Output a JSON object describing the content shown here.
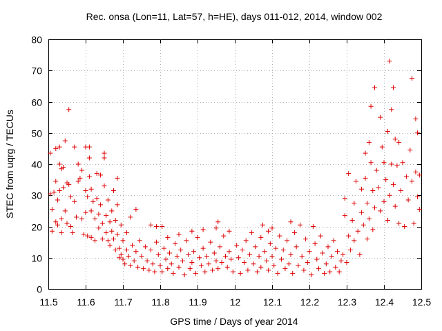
{
  "chart_data": {
    "type": "scatter",
    "title": "Rec. onsa (Lon=11, Lat=57, h=HE), days 011-012, 2014, window 002",
    "xlabel": "GPS time / Days of year 2014",
    "ylabel": "STEC from uqrg / TECUs",
    "xlim": [
      11.5,
      12.5
    ],
    "ylim": [
      0,
      80
    ],
    "xticks": [
      "11.5",
      "11.6",
      "11.7",
      "11.8",
      "11.9",
      "12",
      "12.1",
      "12.2",
      "12.3",
      "12.4",
      "12.5"
    ],
    "yticks": [
      "0",
      "10",
      "20",
      "30",
      "40",
      "50",
      "60",
      "70",
      "80"
    ],
    "grid": true,
    "marker": "+",
    "color": "#dd0000",
    "series": [
      {
        "name": "STEC",
        "points": [
          [
            11.505,
            43.5
          ],
          [
            11.505,
            30.5
          ],
          [
            11.51,
            25.5
          ],
          [
            11.51,
            18.5
          ],
          [
            11.515,
            31.0
          ],
          [
            11.52,
            45.0
          ],
          [
            11.52,
            34.5
          ],
          [
            11.52,
            21.5
          ],
          [
            11.525,
            28.5
          ],
          [
            11.525,
            20.5
          ],
          [
            11.53,
            45.5
          ],
          [
            11.53,
            40.0
          ],
          [
            11.53,
            31.5
          ],
          [
            11.535,
            38.5
          ],
          [
            11.535,
            22.5
          ],
          [
            11.535,
            18.0
          ],
          [
            11.54,
            39.0
          ],
          [
            11.54,
            32.5
          ],
          [
            11.545,
            47.5
          ],
          [
            11.545,
            25.0
          ],
          [
            11.55,
            34.0
          ],
          [
            11.55,
            21.0
          ],
          [
            11.555,
            57.5
          ],
          [
            11.555,
            33.5
          ],
          [
            11.56,
            29.5
          ],
          [
            11.56,
            20.0
          ],
          [
            11.565,
            18.0
          ],
          [
            11.57,
            45.5
          ],
          [
            11.57,
            28.0
          ],
          [
            11.575,
            23.0
          ],
          [
            11.58,
            40.0
          ],
          [
            11.58,
            34.5
          ],
          [
            11.585,
            35.5
          ],
          [
            11.59,
            38.0
          ],
          [
            11.59,
            22.5
          ],
          [
            11.595,
            17.5
          ],
          [
            11.6,
            45.5
          ],
          [
            11.6,
            31.5
          ],
          [
            11.6,
            24.5
          ],
          [
            11.605,
            29.5
          ],
          [
            11.605,
            17.0
          ],
          [
            11.61,
            45.5
          ],
          [
            11.61,
            42.0
          ],
          [
            11.61,
            36.0
          ],
          [
            11.615,
            32.0
          ],
          [
            11.615,
            25.0
          ],
          [
            11.615,
            16.5
          ],
          [
            11.62,
            28.0
          ],
          [
            11.625,
            22.5
          ],
          [
            11.625,
            15.5
          ],
          [
            11.63,
            37.0
          ],
          [
            11.63,
            29.0
          ],
          [
            11.635,
            24.0
          ],
          [
            11.635,
            19.5
          ],
          [
            11.64,
            36.5
          ],
          [
            11.64,
            27.0
          ],
          [
            11.645,
            21.0
          ],
          [
            11.645,
            16.0
          ],
          [
            11.65,
            43.5
          ],
          [
            11.65,
            42.0
          ],
          [
            11.65,
            33.0
          ],
          [
            11.655,
            23.5
          ],
          [
            11.655,
            18.0
          ],
          [
            11.66,
            28.5
          ],
          [
            11.66,
            15.5
          ],
          [
            11.665,
            21.5
          ],
          [
            11.665,
            14.0
          ],
          [
            11.67,
            25.0
          ],
          [
            11.67,
            18.5
          ],
          [
            11.675,
            31.5
          ],
          [
            11.675,
            16.0
          ],
          [
            11.68,
            22.0
          ],
          [
            11.68,
            12.5
          ],
          [
            11.685,
            35.5
          ],
          [
            11.685,
            27.0
          ],
          [
            11.685,
            17.5
          ],
          [
            11.69,
            13.0
          ],
          [
            11.69,
            10.0
          ],
          [
            11.695,
            20.5
          ],
          [
            11.695,
            11.0
          ],
          [
            11.7,
            15.5
          ],
          [
            11.7,
            9.5
          ],
          [
            11.705,
            8.0
          ],
          [
            11.71,
            18.0
          ],
          [
            11.71,
            12.5
          ],
          [
            11.715,
            10.5
          ],
          [
            11.72,
            23.0
          ],
          [
            11.72,
            7.5
          ],
          [
            11.725,
            14.0
          ],
          [
            11.73,
            9.0
          ],
          [
            11.735,
            25.5
          ],
          [
            11.735,
            12.0
          ],
          [
            11.74,
            7.0
          ],
          [
            11.745,
            15.5
          ],
          [
            11.75,
            10.5
          ],
          [
            11.755,
            6.5
          ],
          [
            11.76,
            13.5
          ],
          [
            11.765,
            9.0
          ],
          [
            11.77,
            6.0
          ],
          [
            11.775,
            20.5
          ],
          [
            11.775,
            12.5
          ],
          [
            11.78,
            8.0
          ],
          [
            11.785,
            5.5
          ],
          [
            11.79,
            20.0
          ],
          [
            11.79,
            15.0
          ],
          [
            11.795,
            11.0
          ],
          [
            11.8,
            7.5
          ],
          [
            11.805,
            20.0
          ],
          [
            11.805,
            5.5
          ],
          [
            11.81,
            13.0
          ],
          [
            11.815,
            9.5
          ],
          [
            11.82,
            16.5
          ],
          [
            11.82,
            6.5
          ],
          [
            11.825,
            11.5
          ],
          [
            11.83,
            8.0
          ],
          [
            11.835,
            5.0
          ],
          [
            11.84,
            14.5
          ],
          [
            11.845,
            10.5
          ],
          [
            11.85,
            17.5
          ],
          [
            11.85,
            7.0
          ],
          [
            11.855,
            12.5
          ],
          [
            11.86,
            9.0
          ],
          [
            11.865,
            4.5
          ],
          [
            11.87,
            15.5
          ],
          [
            11.875,
            11.0
          ],
          [
            11.88,
            6.5
          ],
          [
            11.885,
            18.5
          ],
          [
            11.885,
            8.5
          ],
          [
            11.89,
            12.0
          ],
          [
            11.895,
            5.0
          ],
          [
            11.9,
            16.5
          ],
          [
            11.905,
            10.0
          ],
          [
            11.91,
            7.5
          ],
          [
            11.915,
            19.0
          ],
          [
            11.915,
            13.0
          ],
          [
            11.92,
            5.5
          ],
          [
            11.925,
            10.5
          ],
          [
            11.93,
            8.0
          ],
          [
            11.935,
            15.0
          ],
          [
            11.94,
            6.0
          ],
          [
            11.945,
            11.5
          ],
          [
            11.95,
            19.5
          ],
          [
            11.95,
            9.0
          ],
          [
            11.955,
            21.5
          ],
          [
            11.955,
            6.5
          ],
          [
            11.96,
            13.5
          ],
          [
            11.965,
            8.5
          ],
          [
            11.97,
            17.0
          ],
          [
            11.975,
            10.5
          ],
          [
            11.98,
            7.0
          ],
          [
            11.985,
            18.5
          ],
          [
            11.985,
            12.0
          ],
          [
            11.99,
            9.5
          ],
          [
            11.995,
            5.5
          ],
          [
            12.005,
            14.0
          ],
          [
            12.01,
            10.0
          ],
          [
            12.015,
            5.0
          ],
          [
            12.02,
            12.5
          ],
          [
            12.025,
            8.5
          ],
          [
            12.03,
            15.5
          ],
          [
            12.035,
            6.0
          ],
          [
            12.04,
            11.0
          ],
          [
            12.045,
            18.0
          ],
          [
            12.05,
            8.0
          ],
          [
            12.055,
            13.5
          ],
          [
            12.06,
            5.5
          ],
          [
            12.065,
            10.5
          ],
          [
            12.07,
            16.5
          ],
          [
            12.07,
            7.0
          ],
          [
            12.075,
            20.5
          ],
          [
            12.08,
            12.0
          ],
          [
            12.085,
            9.0
          ],
          [
            12.09,
            18.5
          ],
          [
            12.09,
            6.0
          ],
          [
            12.095,
            14.5
          ],
          [
            12.1,
            19.5
          ],
          [
            12.1,
            10.5
          ],
          [
            12.105,
            7.5
          ],
          [
            12.11,
            13.0
          ],
          [
            12.115,
            5.0
          ],
          [
            12.12,
            17.0
          ],
          [
            12.125,
            9.5
          ],
          [
            12.13,
            12.5
          ],
          [
            12.135,
            6.5
          ],
          [
            12.14,
            15.5
          ],
          [
            12.145,
            8.0
          ],
          [
            12.15,
            21.5
          ],
          [
            12.15,
            11.0
          ],
          [
            12.155,
            5.0
          ],
          [
            12.16,
            18.0
          ],
          [
            12.165,
            13.5
          ],
          [
            12.17,
            7.5
          ],
          [
            12.175,
            20.5
          ],
          [
            12.18,
            10.5
          ],
          [
            12.185,
            6.0
          ],
          [
            12.19,
            16.0
          ],
          [
            12.195,
            8.5
          ],
          [
            12.2,
            12.0
          ],
          [
            12.205,
            4.5
          ],
          [
            12.21,
            20.0
          ],
          [
            12.215,
            14.5
          ],
          [
            12.22,
            9.5
          ],
          [
            12.225,
            6.5
          ],
          [
            12.23,
            17.0
          ],
          [
            12.235,
            11.5
          ],
          [
            12.24,
            5.0
          ],
          [
            12.245,
            8.0
          ],
          [
            12.25,
            13.5
          ],
          [
            12.255,
            5.5
          ],
          [
            12.26,
            10.5
          ],
          [
            12.265,
            15.5
          ],
          [
            12.27,
            7.0
          ],
          [
            12.275,
            12.0
          ],
          [
            12.28,
            5.5
          ],
          [
            12.285,
            9.0
          ],
          [
            12.29,
            11.0
          ],
          [
            12.295,
            23.5
          ],
          [
            12.295,
            29.0
          ],
          [
            12.3,
            8.5
          ],
          [
            12.305,
            17.0
          ],
          [
            12.305,
            37.0
          ],
          [
            12.31,
            12.5
          ],
          [
            12.315,
            22.0
          ],
          [
            12.32,
            27.5
          ],
          [
            12.32,
            15.5
          ],
          [
            12.325,
            34.5
          ],
          [
            12.33,
            18.5
          ],
          [
            12.335,
            11.0
          ],
          [
            12.34,
            32.0
          ],
          [
            12.34,
            24.5
          ],
          [
            12.345,
            20.5
          ],
          [
            12.35,
            43.5
          ],
          [
            12.35,
            35.5
          ],
          [
            12.355,
            27.5
          ],
          [
            12.355,
            16.0
          ],
          [
            12.36,
            47.0
          ],
          [
            12.36,
            22.5
          ],
          [
            12.365,
            58.5
          ],
          [
            12.365,
            40.5
          ],
          [
            12.37,
            31.5
          ],
          [
            12.37,
            19.0
          ],
          [
            12.375,
            64.5
          ],
          [
            12.375,
            26.0
          ],
          [
            12.38,
            38.0
          ],
          [
            12.385,
            32.5
          ],
          [
            12.39,
            55.0
          ],
          [
            12.39,
            25.0
          ],
          [
            12.395,
            45.5
          ],
          [
            12.4,
            40.5
          ],
          [
            12.4,
            28.0
          ],
          [
            12.405,
            35.0
          ],
          [
            12.41,
            50.5
          ],
          [
            12.41,
            22.0
          ],
          [
            12.415,
            73.0
          ],
          [
            12.415,
            30.0
          ],
          [
            12.42,
            57.5
          ],
          [
            12.42,
            40.0
          ],
          [
            12.425,
            64.5
          ],
          [
            12.425,
            33.5
          ],
          [
            12.43,
            48.0
          ],
          [
            12.43,
            26.5
          ],
          [
            12.435,
            39.5
          ],
          [
            12.44,
            47.0
          ],
          [
            12.44,
            21.0
          ],
          [
            12.445,
            31.5
          ],
          [
            12.45,
            40.5
          ],
          [
            12.455,
            20.0
          ],
          [
            12.46,
            36.0
          ],
          [
            12.465,
            28.5
          ],
          [
            12.47,
            44.5
          ],
          [
            12.475,
            67.5
          ],
          [
            12.475,
            34.5
          ],
          [
            12.48,
            21.0
          ],
          [
            12.485,
            54.5
          ],
          [
            12.485,
            37.5
          ],
          [
            12.49,
            50.0
          ],
          [
            12.49,
            29.5
          ],
          [
            12.495,
            36.5
          ],
          [
            12.495,
            25.5
          ]
        ]
      }
    ]
  }
}
